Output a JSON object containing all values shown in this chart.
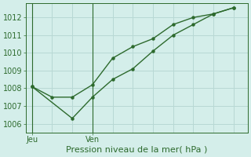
{
  "line1_x": [
    0,
    1,
    2,
    3,
    4,
    5,
    6,
    7,
    8,
    9,
    10
  ],
  "line1_y": [
    1008.1,
    1007.5,
    1007.5,
    1008.2,
    1009.7,
    1010.35,
    1010.8,
    1011.6,
    1012.0,
    1012.2,
    1012.55
  ],
  "line2_x": [
    0,
    2,
    3,
    4,
    5,
    6,
    7,
    8,
    9,
    10
  ],
  "line2_y": [
    1008.1,
    1006.3,
    1007.5,
    1008.5,
    1009.1,
    1010.1,
    1011.0,
    1011.6,
    1012.2,
    1012.55
  ],
  "line_color": "#2d6a2d",
  "bg_color": "#d4eeea",
  "grid_color": "#b8d8d4",
  "xlabel": "Pression niveau de la mer( hPa )",
  "xtick_positions": [
    0,
    3
  ],
  "xtick_labels": [
    "Jeu",
    "Ven"
  ],
  "vline_positions": [
    0,
    3
  ],
  "ylim": [
    1005.5,
    1012.8
  ],
  "ytick_values": [
    1006,
    1007,
    1008,
    1009,
    1010,
    1011,
    1012
  ],
  "xlabel_fontsize": 8,
  "tick_fontsize": 7
}
